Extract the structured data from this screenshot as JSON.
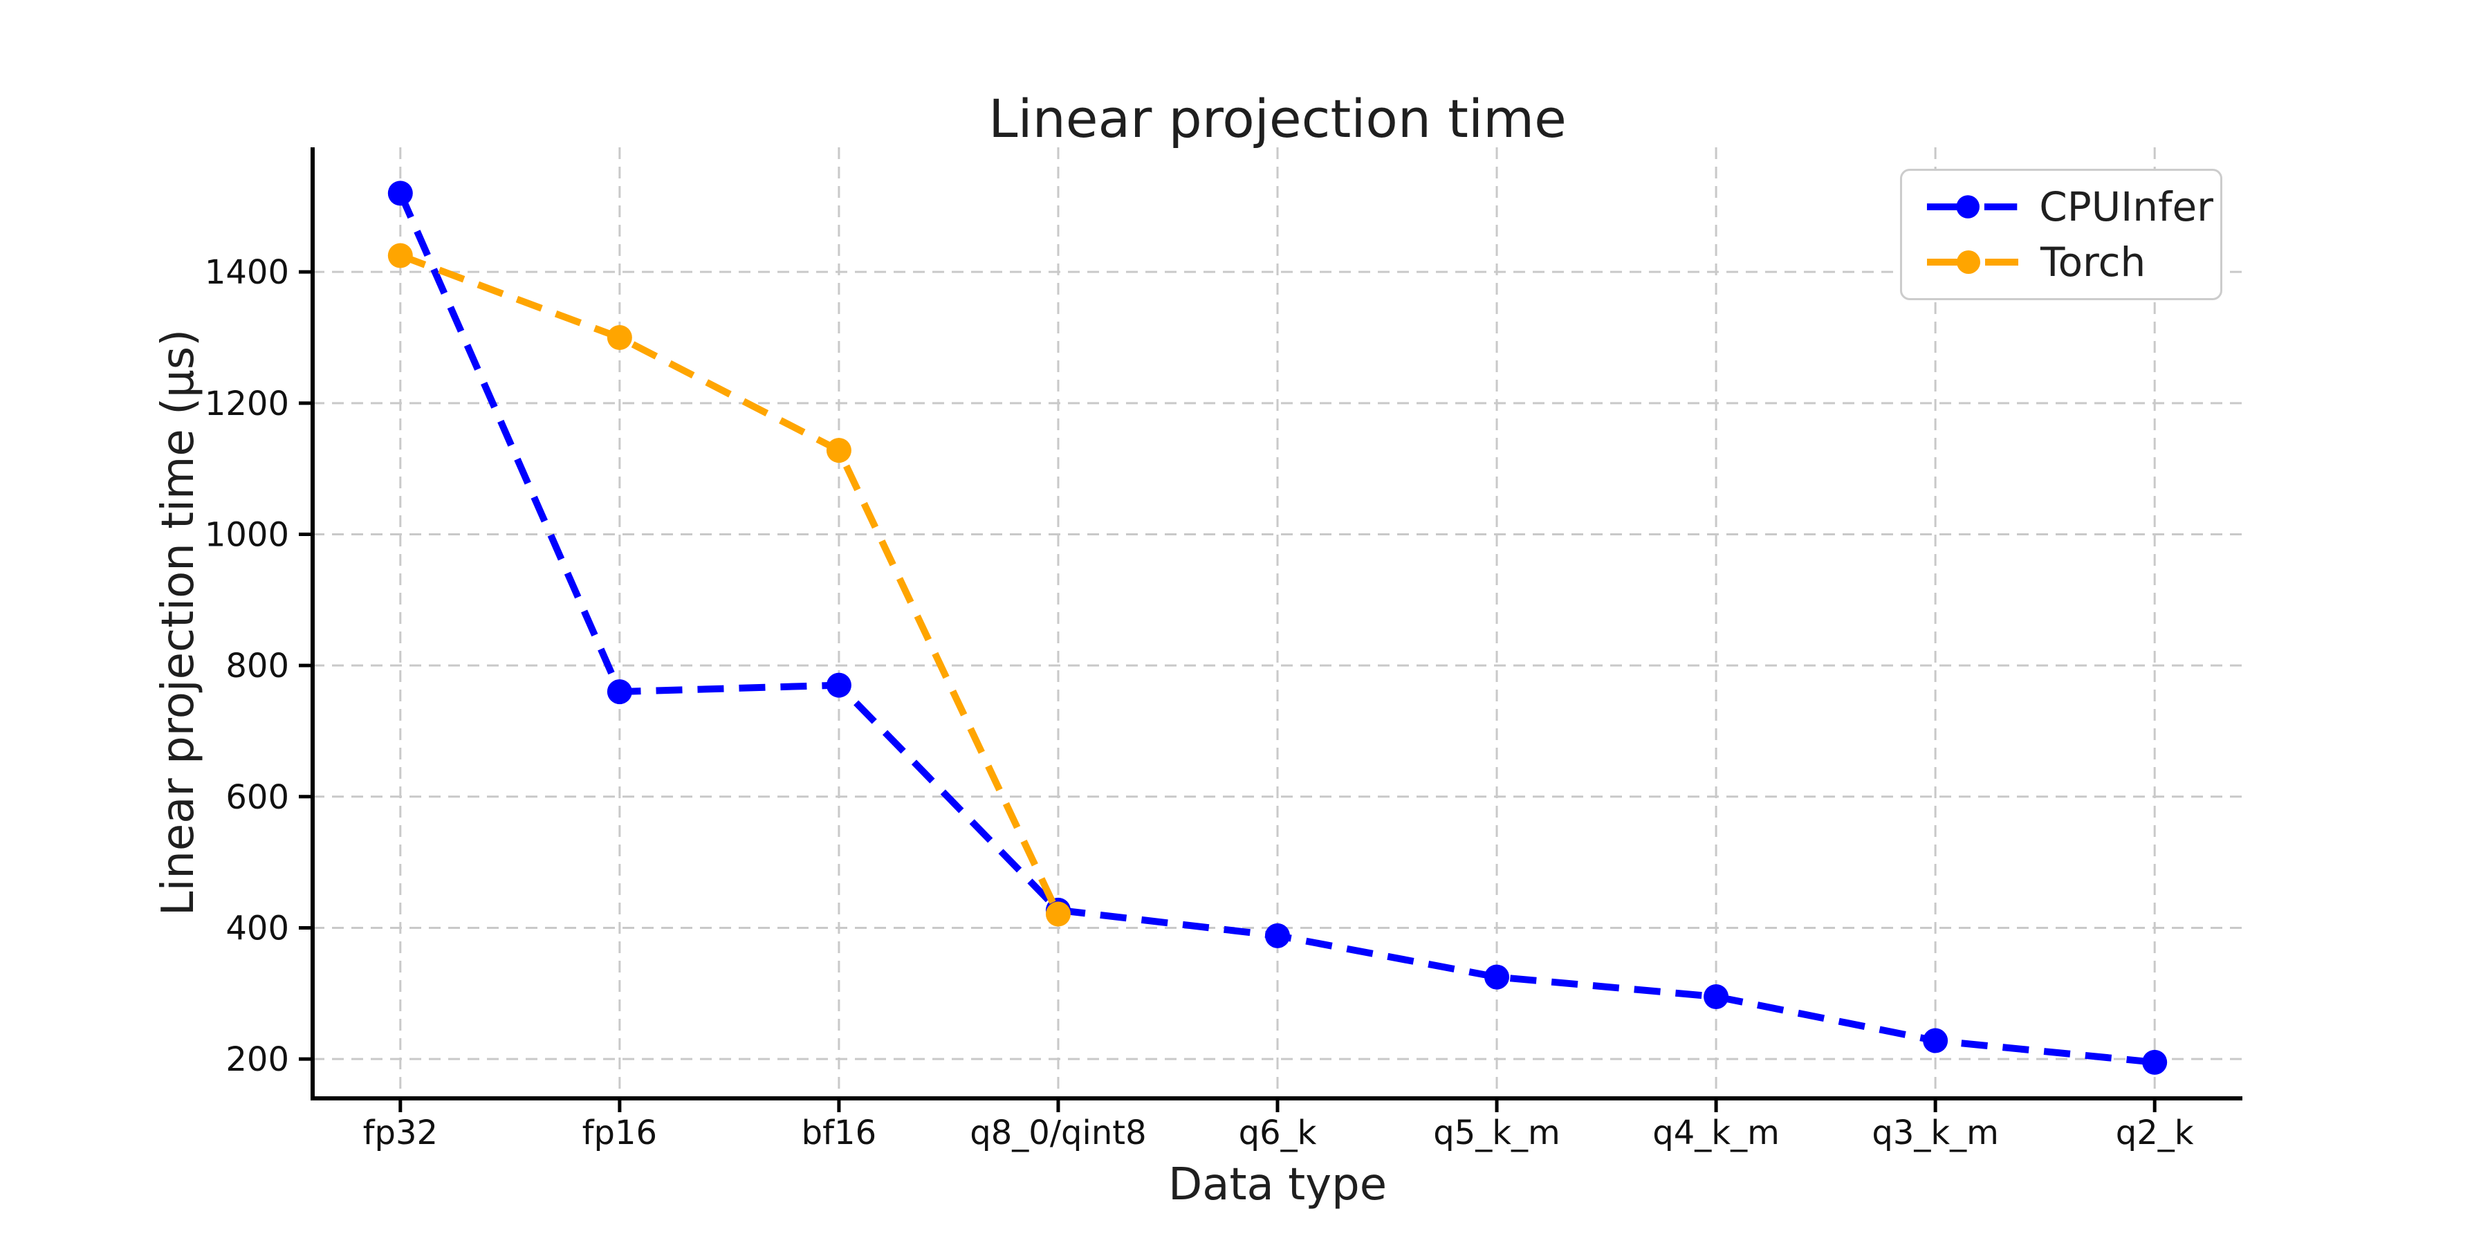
{
  "title": "Linear projection time",
  "colors": {
    "cpuinfer": "#0000ff",
    "torch": "#ffa500",
    "grid": "#c9c9c9",
    "spine": "#000000",
    "text": "#1f1f1f",
    "legend_border": "#cccccc",
    "background": "#ffffff"
  },
  "legend": {
    "items": [
      "CPUInfer",
      "Torch"
    ]
  },
  "chart_data": {
    "type": "line",
    "title": "Linear projection time",
    "xlabel": "Data type",
    "ylabel": "Linear projection time (μs)",
    "categories": [
      "fp32",
      "fp16",
      "bf16",
      "q8_0/qint8",
      "q6_k",
      "q5_k_m",
      "q4_k_m",
      "q3_k_m",
      "q2_k"
    ],
    "y_ticks": [
      200,
      400,
      600,
      800,
      1000,
      1200,
      1400
    ],
    "ylim": [
      140,
      1590
    ],
    "grid": true,
    "grid_style": "dashed",
    "line_style": "dashed",
    "marker": "circle",
    "legend_position": "upper right",
    "series": [
      {
        "name": "CPUInfer",
        "color": "#0000ff",
        "values": [
          1520,
          760,
          770,
          427,
          388,
          325,
          295,
          228,
          195
        ]
      },
      {
        "name": "Torch",
        "color": "#ffa500",
        "values": [
          1425,
          1300,
          1128,
          421
        ]
      }
    ]
  }
}
